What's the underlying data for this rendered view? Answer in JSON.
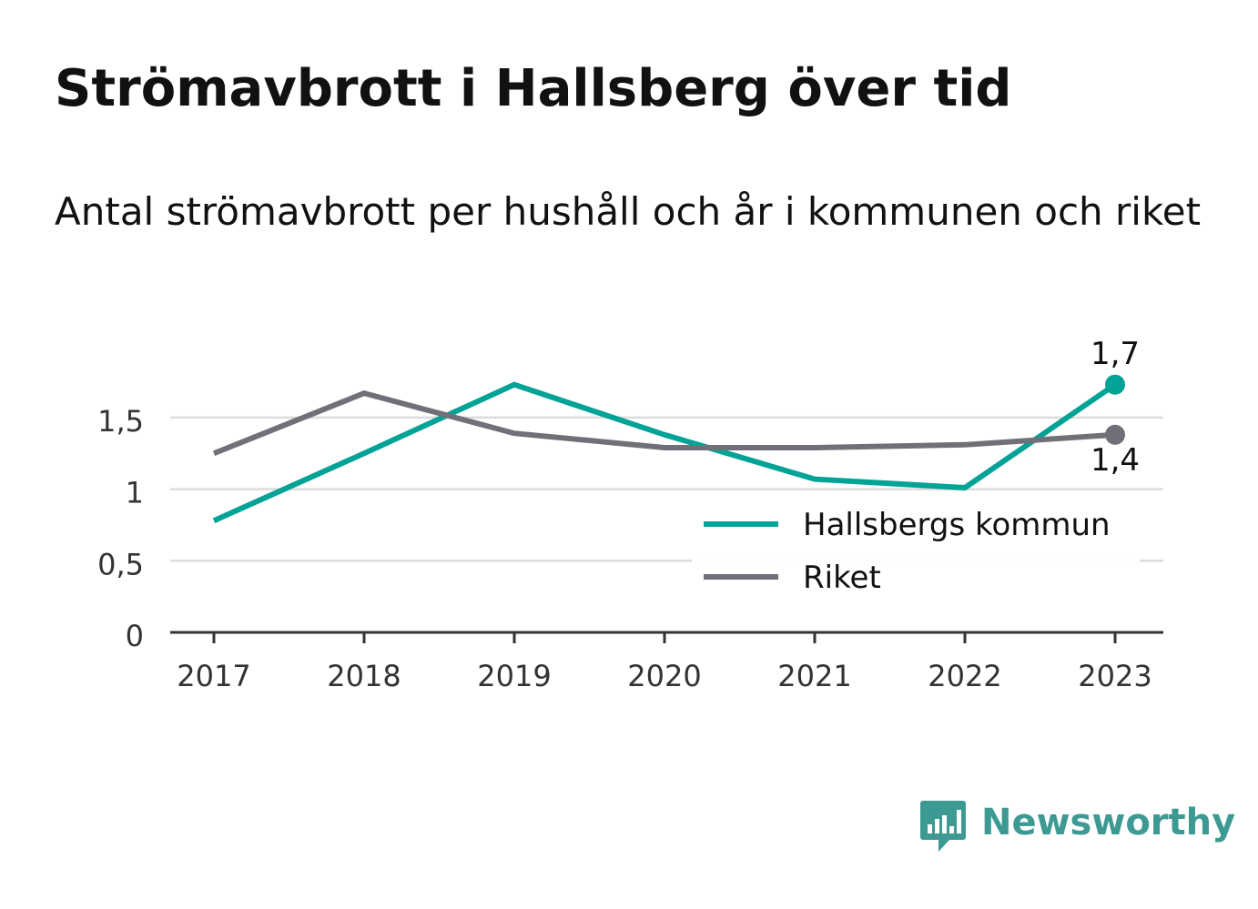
{
  "header": {
    "title": "Strömavbrott i Hallsberg över tid",
    "subtitle": "Antal strömavbrott per hushåll och år i kommunen och riket"
  },
  "chart_data": {
    "type": "line",
    "title": "Strömavbrott i Hallsberg över tid",
    "subtitle": "Antal strömavbrott per hushåll och år i kommunen och riket",
    "x": [
      "2017",
      "2018",
      "2019",
      "2020",
      "2021",
      "2022",
      "2023"
    ],
    "series": [
      {
        "name": "Hallsbergs kommun",
        "color": "#00a396",
        "values": [
          0.78,
          1.25,
          1.73,
          1.38,
          1.07,
          1.01,
          1.73
        ]
      },
      {
        "name": "Riket",
        "color": "#717078",
        "values": [
          1.25,
          1.67,
          1.39,
          1.29,
          1.29,
          1.31,
          1.38
        ]
      }
    ],
    "y_ticks": [
      {
        "value": 0,
        "label": "0"
      },
      {
        "value": 0.5,
        "label": "0,5"
      },
      {
        "value": 1,
        "label": "1"
      },
      {
        "value": 1.5,
        "label": "1,5"
      }
    ],
    "ylim": [
      0,
      1.8
    ],
    "end_labels": [
      "1,7",
      "1,4"
    ],
    "grid": true,
    "legend_position": "bottom-right",
    "xlabel": "",
    "ylabel": ""
  },
  "brand": {
    "name": "Newsworthy",
    "color": "#3d9a93"
  }
}
